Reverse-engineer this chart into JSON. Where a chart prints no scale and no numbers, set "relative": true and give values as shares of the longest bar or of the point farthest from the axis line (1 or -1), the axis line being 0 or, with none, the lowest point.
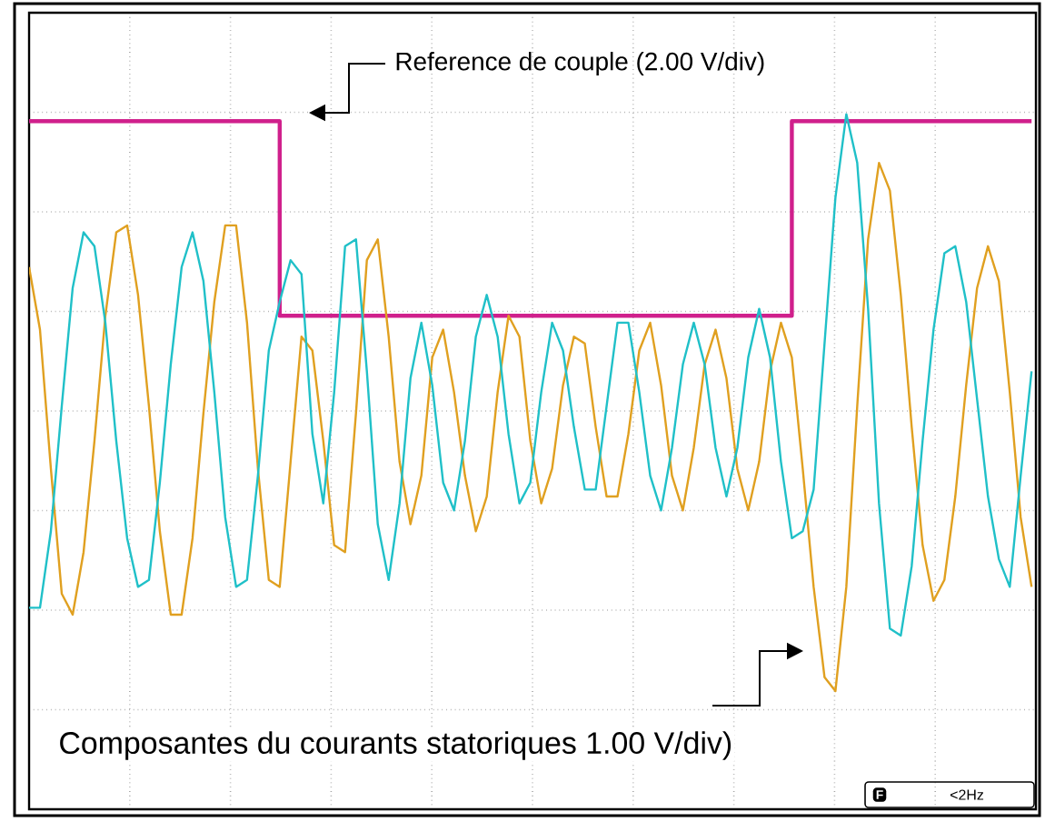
{
  "chart_data": {
    "type": "line",
    "relative": true,
    "grid": true,
    "categories": [
      null,
      null,
      null,
      null,
      null,
      null,
      null,
      null,
      null,
      null,
      null,
      null,
      null,
      null,
      null,
      null,
      null,
      null,
      null,
      null,
      null,
      null,
      null,
      null,
      null,
      null,
      null,
      null,
      null,
      null,
      null,
      null,
      null,
      null,
      null,
      null,
      null,
      null,
      null,
      null,
      null,
      null,
      null,
      null,
      null,
      null,
      null,
      null,
      null,
      null,
      null,
      null,
      null,
      null,
      null,
      null,
      null,
      null,
      null,
      null,
      null,
      null,
      null,
      null,
      null,
      null,
      null,
      null,
      null,
      null,
      null,
      null,
      null,
      null,
      null,
      null,
      null,
      null,
      null,
      null,
      null,
      null,
      null,
      null,
      null,
      null,
      null,
      null,
      null,
      null,
      null,
      null,
      null
    ],
    "series": [
      {
        "type": "step",
        "color": "#d0208c",
        "values": [
          0.99,
          0.99,
          0.99,
          0.99,
          0.99,
          0.99,
          0.99,
          0.99,
          0.99,
          0.99,
          0.99,
          0.99,
          0.99,
          0.99,
          0.99,
          0.99,
          0.99,
          0.99,
          0.99,
          0.99,
          0.99,
          0.99,
          0.99,
          0.71,
          0.71,
          0.71,
          0.71,
          0.71,
          0.71,
          0.71,
          0.71,
          0.71,
          0.71,
          0.71,
          0.71,
          0.71,
          0.71,
          0.71,
          0.71,
          0.71,
          0.71,
          0.71,
          0.71,
          0.71,
          0.71,
          0.71,
          0.71,
          0.71,
          0.71,
          0.71,
          0.71,
          0.71,
          0.71,
          0.71,
          0.71,
          0.71,
          0.71,
          0.71,
          0.71,
          0.71,
          0.71,
          0.71,
          0.71,
          0.71,
          0.71,
          0.71,
          0.71,
          0.71,
          0.71,
          0.71,
          0.99,
          0.99,
          0.99,
          0.99,
          0.99,
          0.99,
          0.99,
          0.99,
          0.99,
          0.99,
          0.99,
          0.99,
          0.99,
          0.99,
          0.99,
          0.99,
          0.99,
          0.99,
          0.99,
          0.99,
          0.99,
          0.99,
          0.99
        ]
      },
      {
        "color": "#e0a020",
        "values": [
          0.78,
          0.69,
          0.49,
          0.31,
          0.28,
          0.37,
          0.53,
          0.71,
          0.83,
          0.84,
          0.74,
          0.58,
          0.4,
          0.28,
          0.28,
          0.39,
          0.57,
          0.73,
          0.84,
          0.84,
          0.7,
          0.49,
          0.33,
          0.32,
          0.5,
          0.68,
          0.66,
          0.53,
          0.38,
          0.37,
          0.57,
          0.79,
          0.82,
          0.68,
          0.5,
          0.41,
          0.48,
          0.65,
          0.69,
          0.6,
          0.48,
          0.4,
          0.45,
          0.6,
          0.71,
          0.68,
          0.53,
          0.44,
          0.49,
          0.61,
          0.68,
          0.67,
          0.55,
          0.45,
          0.45,
          0.54,
          0.66,
          0.7,
          0.61,
          0.48,
          0.43,
          0.52,
          0.64,
          0.69,
          0.62,
          0.49,
          0.43,
          0.5,
          0.63,
          0.7,
          0.65,
          0.49,
          0.32,
          0.19,
          0.17,
          0.32,
          0.58,
          0.82,
          0.93,
          0.89,
          0.74,
          0.55,
          0.38,
          0.3,
          0.33,
          0.45,
          0.61,
          0.75,
          0.81,
          0.76,
          0.6,
          0.42,
          0.32
        ]
      },
      {
        "color": "#20c0c8",
        "values": [
          0.29,
          0.29,
          0.4,
          0.58,
          0.75,
          0.83,
          0.81,
          0.7,
          0.53,
          0.39,
          0.32,
          0.33,
          0.47,
          0.64,
          0.78,
          0.83,
          0.76,
          0.6,
          0.42,
          0.32,
          0.33,
          0.48,
          0.66,
          0.73,
          0.79,
          0.77,
          0.54,
          0.44,
          0.6,
          0.81,
          0.82,
          0.63,
          0.41,
          0.33,
          0.44,
          0.62,
          0.7,
          0.61,
          0.47,
          0.43,
          0.53,
          0.68,
          0.74,
          0.68,
          0.54,
          0.44,
          0.47,
          0.6,
          0.7,
          0.66,
          0.55,
          0.46,
          0.46,
          0.58,
          0.7,
          0.7,
          0.6,
          0.48,
          0.43,
          0.52,
          0.64,
          0.7,
          0.64,
          0.52,
          0.45,
          0.52,
          0.65,
          0.72,
          0.65,
          0.5,
          0.39,
          0.4,
          0.46,
          0.67,
          0.88,
          1.0,
          0.93,
          0.72,
          0.44,
          0.26,
          0.25,
          0.35,
          0.53,
          0.69,
          0.8,
          0.81,
          0.73,
          0.59,
          0.45,
          0.36,
          0.32,
          0.48,
          0.63
        ]
      }
    ],
    "annotations": [
      "Reference de couple (2.00 V/div)",
      "Composantes du courants statoriques 1.00 V/div)",
      "F",
      "<2Hz"
    ]
  }
}
